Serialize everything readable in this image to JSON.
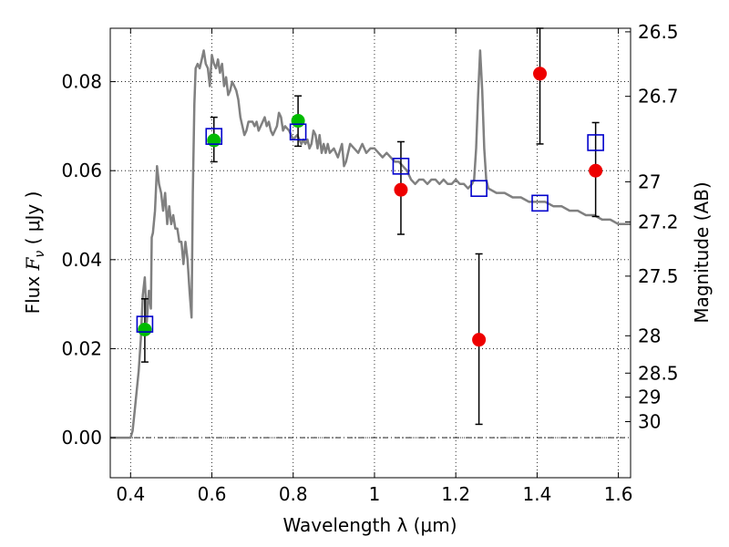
{
  "chart_data": {
    "type": "scatter",
    "xlabel": "Wavelength  λ (μm)",
    "ylabel_left": {
      "text": "Flux  ",
      "symbol": "F",
      "subscript": "ν",
      "unit": " ( μJy )"
    },
    "ylabel_right": "Magnitude (AB)",
    "xlim": [
      0.35,
      1.63
    ],
    "ylim": [
      -0.009,
      0.092
    ],
    "grid": true,
    "x_ticks": [
      0.4,
      0.6,
      0.8,
      1.0,
      1.2,
      1.4,
      1.6
    ],
    "x_tick_labels": [
      "0.4",
      "0.6",
      "0.8",
      "1",
      "1.2",
      "1.4",
      "1.6"
    ],
    "y_ticks": [
      0.0,
      0.02,
      0.04,
      0.06,
      0.08
    ],
    "y_tick_labels": [
      "0.00",
      "0.02",
      "0.04",
      "0.06",
      "0.08"
    ],
    "right_ticks": [
      {
        "label": "26.5",
        "flux": 0.0912
      },
      {
        "label": "26.7",
        "flux": 0.0767
      },
      {
        "label": "27",
        "flux": 0.0575
      },
      {
        "label": "27.2",
        "flux": 0.0485
      },
      {
        "label": "27.5",
        "flux": 0.0363
      },
      {
        "label": "28",
        "flux": 0.0229
      },
      {
        "label": "28.5",
        "flux": 0.0145
      },
      {
        "label": "29",
        "flux": 0.0091
      },
      {
        "label": "30",
        "flux": 0.0036
      }
    ],
    "model_spectrum": {
      "color": "#808080",
      "points": [
        [
          0.35,
          0.0
        ],
        [
          0.4,
          0.0
        ],
        [
          0.405,
          0.0015
        ],
        [
          0.41,
          0.006
        ],
        [
          0.42,
          0.015
        ],
        [
          0.425,
          0.022
        ],
        [
          0.43,
          0.032
        ],
        [
          0.435,
          0.036
        ],
        [
          0.44,
          0.026
        ],
        [
          0.445,
          0.033
        ],
        [
          0.45,
          0.029
        ],
        [
          0.452,
          0.045
        ],
        [
          0.455,
          0.046
        ],
        [
          0.46,
          0.051
        ],
        [
          0.465,
          0.061
        ],
        [
          0.47,
          0.057
        ],
        [
          0.475,
          0.055
        ],
        [
          0.48,
          0.051
        ],
        [
          0.485,
          0.055
        ],
        [
          0.49,
          0.048
        ],
        [
          0.495,
          0.052
        ],
        [
          0.5,
          0.048
        ],
        [
          0.505,
          0.05
        ],
        [
          0.51,
          0.047
        ],
        [
          0.515,
          0.047
        ],
        [
          0.52,
          0.044
        ],
        [
          0.525,
          0.044
        ],
        [
          0.53,
          0.039
        ],
        [
          0.535,
          0.044
        ],
        [
          0.54,
          0.04
        ],
        [
          0.545,
          0.033
        ],
        [
          0.55,
          0.027
        ],
        [
          0.553,
          0.055
        ],
        [
          0.557,
          0.075
        ],
        [
          0.56,
          0.083
        ],
        [
          0.565,
          0.084
        ],
        [
          0.57,
          0.083
        ],
        [
          0.575,
          0.085
        ],
        [
          0.58,
          0.087
        ],
        [
          0.585,
          0.084
        ],
        [
          0.59,
          0.083
        ],
        [
          0.595,
          0.079
        ],
        [
          0.6,
          0.086
        ],
        [
          0.605,
          0.084
        ],
        [
          0.61,
          0.083
        ],
        [
          0.615,
          0.085
        ],
        [
          0.62,
          0.082
        ],
        [
          0.625,
          0.084
        ],
        [
          0.63,
          0.079
        ],
        [
          0.635,
          0.081
        ],
        [
          0.64,
          0.077
        ],
        [
          0.645,
          0.078
        ],
        [
          0.65,
          0.08
        ],
        [
          0.655,
          0.079
        ],
        [
          0.66,
          0.078
        ],
        [
          0.665,
          0.076
        ],
        [
          0.67,
          0.072
        ],
        [
          0.675,
          0.07
        ],
        [
          0.68,
          0.068
        ],
        [
          0.685,
          0.069
        ],
        [
          0.69,
          0.071
        ],
        [
          0.7,
          0.071
        ],
        [
          0.705,
          0.07
        ],
        [
          0.71,
          0.071
        ],
        [
          0.715,
          0.069
        ],
        [
          0.72,
          0.07
        ],
        [
          0.725,
          0.071
        ],
        [
          0.73,
          0.072
        ],
        [
          0.735,
          0.07
        ],
        [
          0.74,
          0.071
        ],
        [
          0.745,
          0.069
        ],
        [
          0.75,
          0.068
        ],
        [
          0.76,
          0.07
        ],
        [
          0.765,
          0.073
        ],
        [
          0.77,
          0.072
        ],
        [
          0.775,
          0.069
        ],
        [
          0.78,
          0.07
        ],
        [
          0.79,
          0.069
        ],
        [
          0.8,
          0.067
        ],
        [
          0.81,
          0.068
        ],
        [
          0.815,
          0.067
        ],
        [
          0.82,
          0.066
        ],
        [
          0.825,
          0.067
        ],
        [
          0.83,
          0.066
        ],
        [
          0.835,
          0.067
        ],
        [
          0.84,
          0.065
        ],
        [
          0.845,
          0.066
        ],
        [
          0.85,
          0.069
        ],
        [
          0.855,
          0.068
        ],
        [
          0.86,
          0.065
        ],
        [
          0.865,
          0.068
        ],
        [
          0.87,
          0.064
        ],
        [
          0.875,
          0.066
        ],
        [
          0.88,
          0.064
        ],
        [
          0.885,
          0.066
        ],
        [
          0.89,
          0.064
        ],
        [
          0.9,
          0.065
        ],
        [
          0.91,
          0.063
        ],
        [
          0.92,
          0.066
        ],
        [
          0.925,
          0.061
        ],
        [
          0.93,
          0.062
        ],
        [
          0.94,
          0.066
        ],
        [
          0.95,
          0.065
        ],
        [
          0.96,
          0.064
        ],
        [
          0.97,
          0.066
        ],
        [
          0.98,
          0.064
        ],
        [
          0.99,
          0.065
        ],
        [
          1.0,
          0.065
        ],
        [
          1.01,
          0.064
        ],
        [
          1.02,
          0.063
        ],
        [
          1.03,
          0.064
        ],
        [
          1.04,
          0.063
        ],
        [
          1.05,
          0.062
        ],
        [
          1.06,
          0.062
        ],
        [
          1.07,
          0.061
        ],
        [
          1.08,
          0.06
        ],
        [
          1.09,
          0.058
        ],
        [
          1.1,
          0.057
        ],
        [
          1.11,
          0.058
        ],
        [
          1.12,
          0.058
        ],
        [
          1.13,
          0.057
        ],
        [
          1.14,
          0.058
        ],
        [
          1.15,
          0.058
        ],
        [
          1.16,
          0.057
        ],
        [
          1.17,
          0.058
        ],
        [
          1.18,
          0.057
        ],
        [
          1.19,
          0.057
        ],
        [
          1.2,
          0.058
        ],
        [
          1.21,
          0.057
        ],
        [
          1.22,
          0.057
        ],
        [
          1.23,
          0.056
        ],
        [
          1.24,
          0.057
        ],
        [
          1.245,
          0.058
        ],
        [
          1.25,
          0.065
        ],
        [
          1.255,
          0.077
        ],
        [
          1.26,
          0.087
        ],
        [
          1.265,
          0.078
        ],
        [
          1.27,
          0.065
        ],
        [
          1.275,
          0.058
        ],
        [
          1.28,
          0.056
        ],
        [
          1.3,
          0.055
        ],
        [
          1.32,
          0.055
        ],
        [
          1.34,
          0.054
        ],
        [
          1.36,
          0.054
        ],
        [
          1.38,
          0.053
        ],
        [
          1.4,
          0.053
        ],
        [
          1.42,
          0.053
        ],
        [
          1.44,
          0.052
        ],
        [
          1.46,
          0.052
        ],
        [
          1.48,
          0.051
        ],
        [
          1.5,
          0.051
        ],
        [
          1.52,
          0.05
        ],
        [
          1.54,
          0.05
        ],
        [
          1.56,
          0.049
        ],
        [
          1.58,
          0.049
        ],
        [
          1.6,
          0.048
        ],
        [
          1.63,
          0.048
        ]
      ]
    },
    "series": [
      {
        "marker": "circle",
        "color": "#00bb00",
        "points": [
          {
            "x": 0.435,
            "y": 0.0243,
            "err_lo": 0.017,
            "err_hi": 0.0312
          },
          {
            "x": 0.605,
            "y": 0.0668,
            "err_lo": 0.062,
            "err_hi": 0.072
          },
          {
            "x": 0.812,
            "y": 0.0712,
            "err_lo": 0.0655,
            "err_hi": 0.0768
          }
        ]
      },
      {
        "marker": "circle",
        "color": "#ee0000",
        "points": [
          {
            "x": 1.065,
            "y": 0.0557,
            "err_lo": 0.0457,
            "err_hi": 0.0665
          },
          {
            "x": 1.257,
            "y": 0.022,
            "err_lo": 0.003,
            "err_hi": 0.0413
          },
          {
            "x": 1.407,
            "y": 0.0818,
            "err_lo": 0.066,
            "err_hi": 0.092
          },
          {
            "x": 1.544,
            "y": 0.06,
            "err_lo": 0.0497,
            "err_hi": 0.0708
          }
        ]
      },
      {
        "marker": "square",
        "color": "#0000cc",
        "points": [
          {
            "x": 0.435,
            "y": 0.0255
          },
          {
            "x": 0.605,
            "y": 0.0677
          },
          {
            "x": 0.812,
            "y": 0.0687
          },
          {
            "x": 1.065,
            "y": 0.061
          },
          {
            "x": 1.257,
            "y": 0.056
          },
          {
            "x": 1.407,
            "y": 0.0527
          },
          {
            "x": 1.544,
            "y": 0.0663
          }
        ]
      }
    ]
  }
}
